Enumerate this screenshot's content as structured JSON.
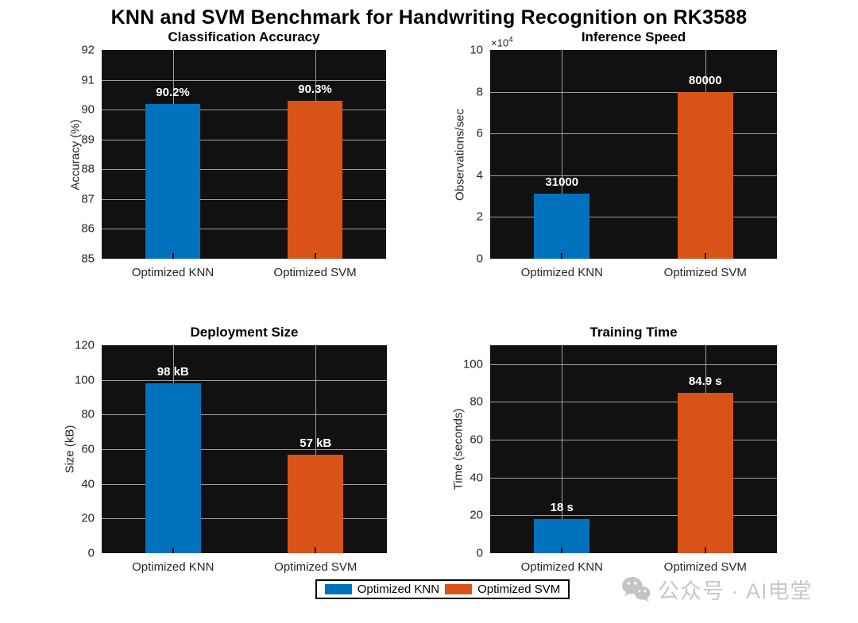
{
  "figure": {
    "title": "KNN and SVM Benchmark for Handwriting Recognition on RK3588"
  },
  "colors": {
    "knn_blue": "#0072BD",
    "svm_orange": "#D95319",
    "plot_background": "#111111",
    "gridline": "#9e9e9e",
    "axis_text": "#262626",
    "bar_label_text": "#ffffff",
    "watermark_gray": "#c8c8c8"
  },
  "chart_data": [
    {
      "type": "bar",
      "title": "Classification Accuracy",
      "ylabel": "Accuracy (%)",
      "categories": [
        "Optimized KNN",
        "Optimized SVM"
      ],
      "values": [
        90.2,
        90.3
      ],
      "bar_labels": [
        "90.2%",
        "90.3%"
      ],
      "bar_colors": [
        "#0072BD",
        "#D95319"
      ],
      "ylim": [
        85,
        92
      ],
      "yticks": [
        85,
        86,
        87,
        88,
        89,
        90,
        91,
        92
      ],
      "ytick_labels": [
        "85",
        "86",
        "87",
        "88",
        "89",
        "90",
        "91",
        "92"
      ],
      "grid": "on"
    },
    {
      "type": "bar",
      "title": "Inference Speed",
      "ylabel": "Observations/sec",
      "exponent_prefix": "×10",
      "exponent_power": "4",
      "categories": [
        "Optimized KNN",
        "Optimized SVM"
      ],
      "values": [
        31000,
        80000
      ],
      "bar_labels": [
        "31000",
        "80000"
      ],
      "bar_colors": [
        "#0072BD",
        "#D95319"
      ],
      "ylim": [
        0,
        100000
      ],
      "yticks": [
        0,
        20000,
        40000,
        60000,
        80000,
        100000
      ],
      "ytick_labels": [
        "0",
        "2",
        "4",
        "6",
        "8",
        "10"
      ],
      "grid": "on"
    },
    {
      "type": "bar",
      "title": "Deployment Size",
      "ylabel": "Size (kB)",
      "categories": [
        "Optimized KNN",
        "Optimized SVM"
      ],
      "values": [
        98,
        57
      ],
      "bar_labels": [
        "98 kB",
        "57 kB"
      ],
      "bar_colors": [
        "#0072BD",
        "#D95319"
      ],
      "ylim": [
        0,
        120
      ],
      "yticks": [
        0,
        20,
        40,
        60,
        80,
        100,
        120
      ],
      "ytick_labels": [
        "0",
        "20",
        "40",
        "60",
        "80",
        "100",
        "120"
      ],
      "grid": "on"
    },
    {
      "type": "bar",
      "title": "Training Time",
      "ylabel": "Time (seconds)",
      "categories": [
        "Optimized KNN",
        "Optimized SVM"
      ],
      "values": [
        18,
        84.9
      ],
      "bar_labels": [
        "18 s",
        "84.9 s"
      ],
      "bar_colors": [
        "#0072BD",
        "#D95319"
      ],
      "ylim": [
        0,
        110
      ],
      "yticks": [
        0,
        20,
        40,
        60,
        80,
        100
      ],
      "ytick_labels": [
        "0",
        "20",
        "40",
        "60",
        "80",
        "100"
      ],
      "grid": "on"
    }
  ],
  "legend": {
    "entries": [
      {
        "label": "Optimized KNN",
        "color": "#0072BD"
      },
      {
        "label": "Optimized SVM",
        "color": "#D95319"
      }
    ]
  },
  "watermark": {
    "icon": "wechat-icon",
    "text": "公众号 · AI电堂"
  }
}
